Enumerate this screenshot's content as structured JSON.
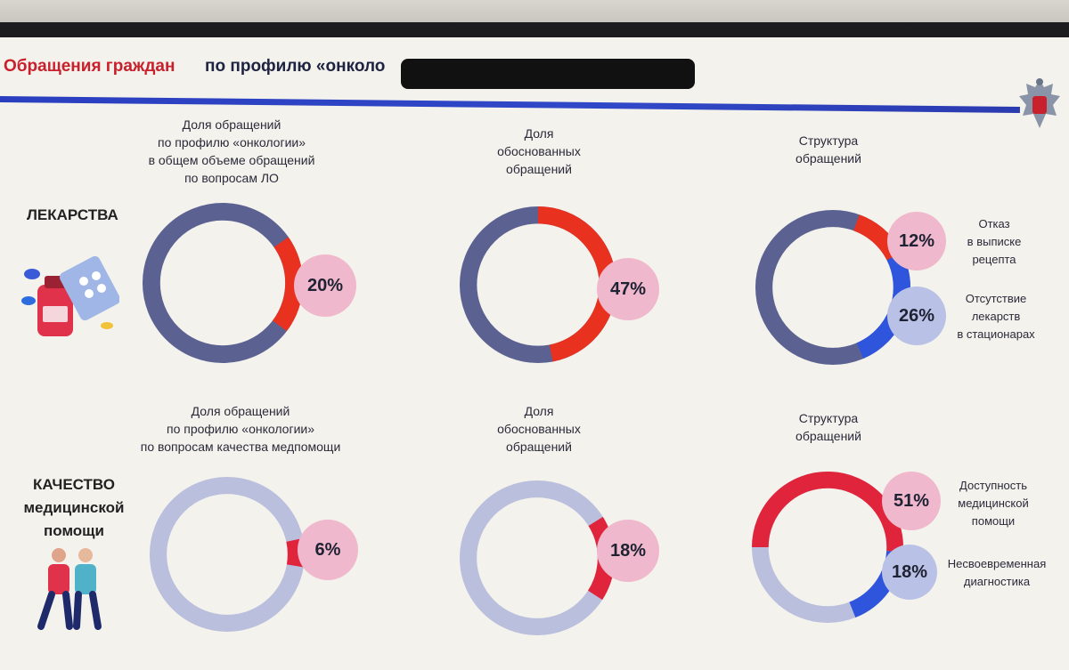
{
  "header": {
    "title_red": "Обращения граждан",
    "title_dark": "по профилю «онколо"
  },
  "sections": {
    "drugs": {
      "label": "ЛЕКАРСТВА"
    },
    "quality": {
      "label_lines": [
        "КАЧЕСТВО",
        "медицинской",
        "помощи"
      ]
    }
  },
  "captions": {
    "share_drugs": [
      "Доля обращений",
      "по профилю «онкологии»",
      "в общем объеме обращений",
      "по вопросам ЛО"
    ],
    "justified_1": [
      "Доля",
      "обоснованных",
      "обращений"
    ],
    "structure_1": [
      "Структура",
      "обращений"
    ],
    "share_quality": [
      "Доля обращений",
      "по профилю «онкологии»",
      "по вопросам качества медпомощи"
    ],
    "justified_2": [
      "Доля",
      "обоснованных",
      "обращений"
    ],
    "structure_2": [
      "Структура",
      "обращений"
    ]
  },
  "side_labels": {
    "refusal": [
      "Отказ",
      "в выписке",
      "рецепта"
    ],
    "absence": [
      "Отсутствие",
      "лекарств",
      "в стационарах"
    ],
    "access": [
      "Доступность",
      "медицинской",
      "помощи"
    ],
    "late_diag": [
      "Несвоевременная",
      "диагностика"
    ]
  },
  "colors": {
    "base_dark": "#5b6190",
    "base_light": "#b9bfdc",
    "red": "#e8311f",
    "crimson": "#e0243c",
    "blue": "#2f55dd",
    "bubble_pink": "#f0b8cc",
    "bubble_blue": "#b9c2e6"
  },
  "chart_data": [
    {
      "type": "pie",
      "id": "drugs-share",
      "slices": [
        {
          "name": "онкология",
          "value": 20
        },
        {
          "name": "прочее",
          "value": 80
        }
      ],
      "labels": [
        "20%"
      ]
    },
    {
      "type": "pie",
      "id": "drugs-justified",
      "slices": [
        {
          "name": "обоснованные",
          "value": 47
        },
        {
          "name": "прочее",
          "value": 53
        }
      ],
      "labels": [
        "47%"
      ]
    },
    {
      "type": "pie",
      "id": "drugs-structure",
      "slices": [
        {
          "name": "Отказ в выписке рецепта",
          "value": 12
        },
        {
          "name": "Отсутствие лекарств в стационарах",
          "value": 26
        },
        {
          "name": "прочее",
          "value": 62
        }
      ],
      "labels": [
        "12%",
        "26%"
      ]
    },
    {
      "type": "pie",
      "id": "quality-share",
      "slices": [
        {
          "name": "онкология",
          "value": 6
        },
        {
          "name": "прочее",
          "value": 94
        }
      ],
      "labels": [
        "6%"
      ]
    },
    {
      "type": "pie",
      "id": "quality-justified",
      "slices": [
        {
          "name": "обоснованные",
          "value": 18
        },
        {
          "name": "прочее",
          "value": 82
        }
      ],
      "labels": [
        "18%"
      ]
    },
    {
      "type": "pie",
      "id": "quality-structure",
      "slices": [
        {
          "name": "Доступность медицинской помощи",
          "value": 51
        },
        {
          "name": "Несвоевременная диагностика",
          "value": 18
        },
        {
          "name": "прочее",
          "value": 31
        }
      ],
      "labels": [
        "51%",
        "18%"
      ]
    }
  ]
}
